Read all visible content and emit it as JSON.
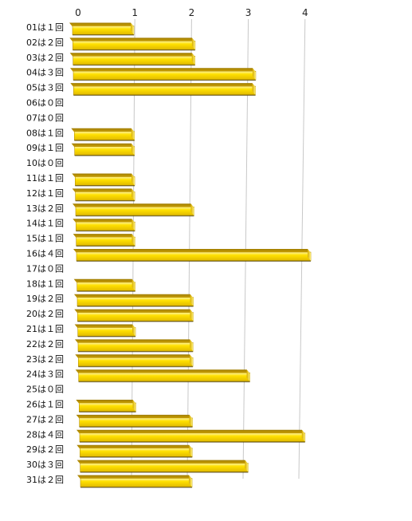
{
  "chart_data": {
    "type": "bar",
    "orientation": "horizontal",
    "title": "",
    "xlabel": "",
    "ylabel": "",
    "xlim": [
      0,
      4
    ],
    "x_ticks": [
      "0",
      "1",
      "2",
      "3",
      "4"
    ],
    "grid": true,
    "legend": "none",
    "categories": [
      "01は１回",
      "02は２回",
      "03は２回",
      "04は３回",
      "05は３回",
      "06は０回",
      "07は０回",
      "08は１回",
      "09は１回",
      "10は０回",
      "11は１回",
      "12は１回",
      "13は２回",
      "14は１回",
      "15は１回",
      "16は４回",
      "17は０回",
      "18は１回",
      "19は２回",
      "20は２回",
      "21は１回",
      "22は２回",
      "23は２回",
      "24は３回",
      "25は０回",
      "26は１回",
      "27は２回",
      "28は４回",
      "29は２回",
      "30は３回",
      "31は２回"
    ],
    "values": [
      1,
      2,
      2,
      3,
      3,
      0,
      0,
      1,
      1,
      0,
      1,
      1,
      2,
      1,
      1,
      4,
      0,
      1,
      2,
      2,
      1,
      2,
      2,
      3,
      0,
      1,
      2,
      4,
      2,
      3,
      2
    ],
    "colors": {
      "bar_face": "#ffd800",
      "bar_highlight": "#fff27a",
      "bar_top": "#c69c00",
      "bar_shadow": "#3a3000",
      "grid": "#c8c8c8"
    }
  }
}
